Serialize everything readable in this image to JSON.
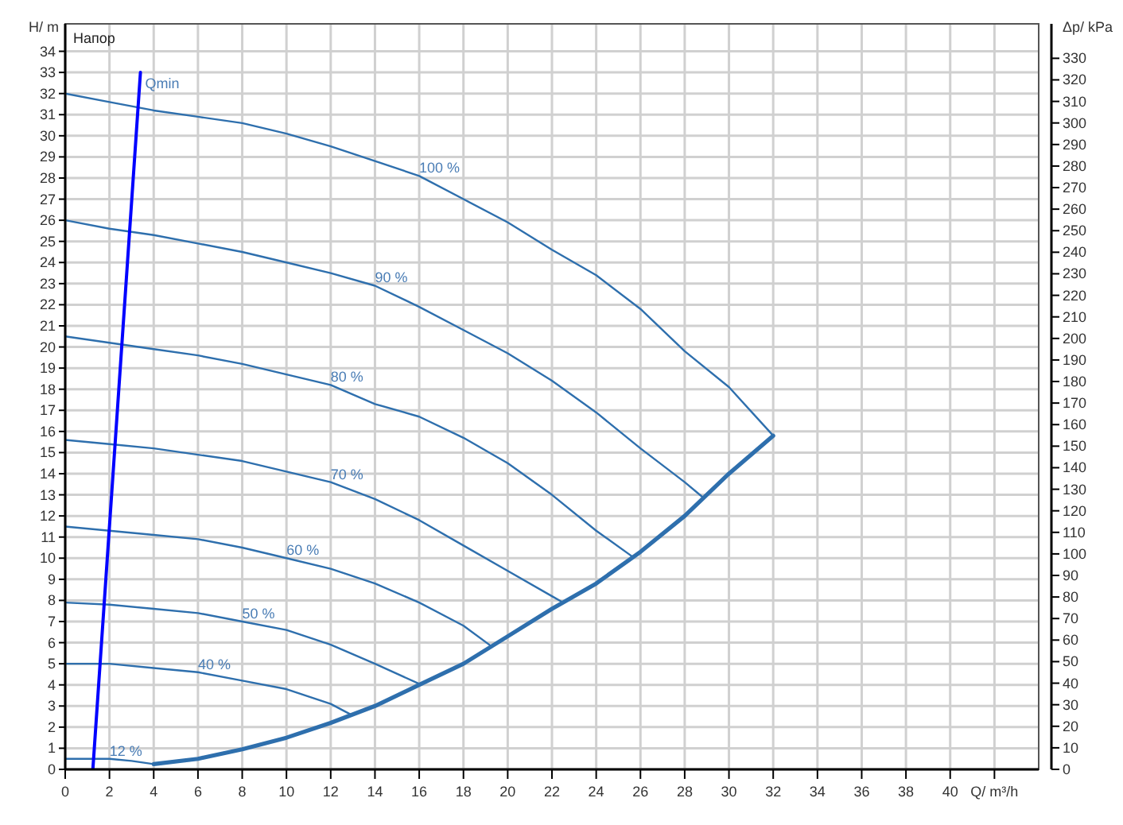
{
  "chart_data": {
    "type": "line",
    "xlabel": "Q/ m³/h",
    "ylabel": "H/ m",
    "y2label": "Δp/ kPa",
    "annotations": [
      "Напор"
    ],
    "xlim": [
      0,
      44
    ],
    "xticks": [
      0,
      2,
      4,
      6,
      8,
      10,
      12,
      14,
      16,
      18,
      20,
      22,
      24,
      26,
      28,
      30,
      32,
      34,
      36,
      38,
      40,
      {
        "value": 42,
        "label": null
      }
    ],
    "ylim": [
      0,
      35.3
    ],
    "yticks": [
      0,
      1,
      2,
      3,
      4,
      5,
      6,
      7,
      8,
      9,
      10,
      11,
      12,
      13,
      14,
      15,
      16,
      17,
      18,
      19,
      20,
      21,
      22,
      23,
      24,
      25,
      26,
      27,
      28,
      29,
      30,
      31,
      32,
      33,
      34
    ],
    "y2lim": [
      0,
      346
    ],
    "y2ticks": [
      0,
      10,
      20,
      30,
      40,
      50,
      60,
      70,
      80,
      90,
      100,
      110,
      120,
      130,
      140,
      150,
      160,
      170,
      180,
      190,
      200,
      210,
      220,
      230,
      240,
      250,
      260,
      270,
      280,
      290,
      300,
      310,
      320,
      330
    ],
    "grid": true,
    "marker": "none",
    "line_style": "solid",
    "series": [
      {
        "name": "100 %",
        "color": "#2e6fad",
        "x": [
          0,
          2,
          4,
          6,
          8,
          10,
          12,
          14,
          16,
          18,
          20,
          22,
          24,
          26,
          28,
          30,
          32
        ],
        "values": [
          32.0,
          31.6,
          31.2,
          30.9,
          30.6,
          30.1,
          29.5,
          28.8,
          28.1,
          27.0,
          25.9,
          24.6,
          23.4,
          21.8,
          19.8,
          18.1,
          15.8
        ]
      },
      {
        "name": "90 %",
        "color": "#2e6fad",
        "x": [
          0,
          2,
          4,
          6,
          8,
          10,
          12,
          14,
          16,
          18,
          20,
          22,
          24,
          26,
          28,
          28.8
        ],
        "values": [
          26.0,
          25.6,
          25.3,
          24.9,
          24.5,
          24.0,
          23.5,
          22.9,
          21.9,
          20.8,
          19.7,
          18.4,
          16.9,
          15.2,
          13.6,
          12.9
        ]
      },
      {
        "name": "80 %",
        "color": "#2e6fad",
        "x": [
          0,
          2,
          4,
          6,
          8,
          10,
          12,
          14,
          16,
          18,
          20,
          22,
          24,
          25.6
        ],
        "values": [
          20.5,
          20.2,
          19.9,
          19.6,
          19.2,
          18.7,
          18.2,
          17.3,
          16.7,
          15.7,
          14.5,
          13.0,
          11.3,
          10.1
        ]
      },
      {
        "name": "70 %",
        "color": "#2e6fad",
        "x": [
          0,
          2,
          4,
          6,
          8,
          10,
          12,
          14,
          16,
          18,
          20,
          22,
          22.5
        ],
        "values": [
          15.6,
          15.4,
          15.2,
          14.9,
          14.6,
          14.1,
          13.6,
          12.8,
          11.8,
          10.6,
          9.4,
          8.2,
          7.9
        ]
      },
      {
        "name": "60 %",
        "color": "#2e6fad",
        "x": [
          0,
          2,
          4,
          6,
          8,
          10,
          12,
          14,
          16,
          18,
          19.3
        ],
        "values": [
          11.5,
          11.3,
          11.1,
          10.9,
          10.5,
          10.0,
          9.5,
          8.8,
          7.9,
          6.8,
          5.8
        ]
      },
      {
        "name": "50 %",
        "color": "#2e6fad",
        "x": [
          0,
          2,
          4,
          6,
          8,
          10,
          12,
          14,
          16.1
        ],
        "values": [
          7.9,
          7.8,
          7.6,
          7.4,
          7.0,
          6.6,
          5.9,
          5.0,
          4.0
        ]
      },
      {
        "name": "40 %",
        "color": "#2e6fad",
        "x": [
          0,
          2,
          4,
          6,
          8,
          10,
          12,
          12.9
        ],
        "values": [
          5.0,
          5.0,
          4.8,
          4.6,
          4.2,
          3.8,
          3.1,
          2.6
        ]
      },
      {
        "name": "12 %",
        "color": "#2e6fad",
        "x": [
          0,
          2,
          3,
          4
        ],
        "values": [
          0.5,
          0.5,
          0.4,
          0.25
        ]
      },
      {
        "color": "#2e6fad",
        "x": [
          4,
          6,
          8,
          10,
          12,
          14,
          16,
          18,
          20,
          22,
          24,
          26,
          28,
          30,
          32
        ],
        "values": [
          0.25,
          0.5,
          0.95,
          1.5,
          2.2,
          3.0,
          4.0,
          5.0,
          6.3,
          7.6,
          8.8,
          10.3,
          12.0,
          14.0,
          15.8
        ]
      },
      {
        "name": "Qmin",
        "color": "#0000ff",
        "x": [
          1.25,
          3.4
        ],
        "values": [
          0,
          33.0
        ]
      }
    ]
  }
}
